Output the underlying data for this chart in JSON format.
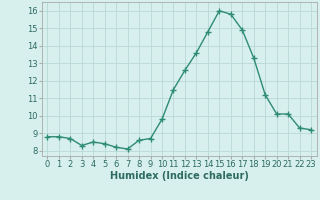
{
  "x": [
    0,
    1,
    2,
    3,
    4,
    5,
    6,
    7,
    8,
    9,
    10,
    11,
    12,
    13,
    14,
    15,
    16,
    17,
    18,
    19,
    20,
    21,
    22,
    23
  ],
  "y": [
    8.8,
    8.8,
    8.7,
    8.3,
    8.5,
    8.4,
    8.2,
    8.1,
    8.6,
    8.7,
    9.8,
    11.5,
    12.6,
    13.6,
    14.8,
    16.0,
    15.8,
    14.9,
    13.3,
    11.2,
    10.1,
    10.1,
    9.3,
    9.2
  ],
  "line_color": "#2e8b74",
  "marker": "+",
  "marker_size": 4.0,
  "linewidth": 1.0,
  "bg_color": "#d7f0ee",
  "grid_color": "#b8d8d5",
  "xlabel": "Humidex (Indice chaleur)",
  "xlabel_fontsize": 7,
  "ylabel_ticks": [
    8,
    9,
    10,
    11,
    12,
    13,
    14,
    15,
    16
  ],
  "xlim": [
    -0.5,
    23.5
  ],
  "ylim": [
    7.7,
    16.5
  ],
  "xtick_labels": [
    "0",
    "1",
    "2",
    "3",
    "4",
    "5",
    "6",
    "7",
    "8",
    "9",
    "10",
    "11",
    "12",
    "13",
    "14",
    "15",
    "16",
    "17",
    "18",
    "19",
    "20",
    "21",
    "22",
    "23"
  ],
  "tick_fontsize": 6.0
}
